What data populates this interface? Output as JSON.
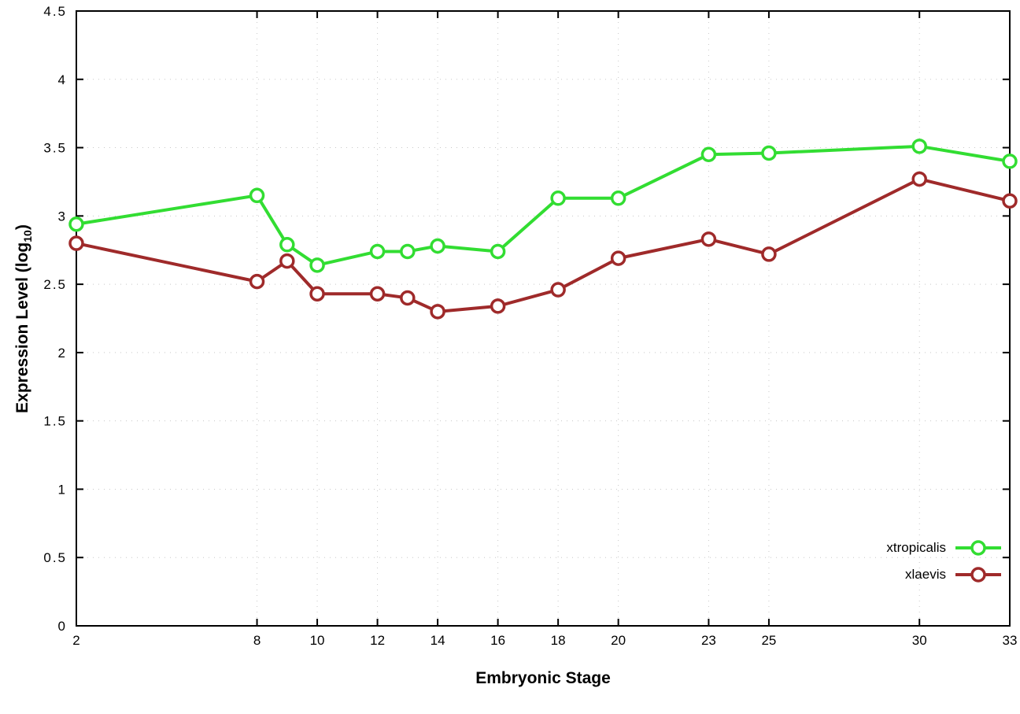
{
  "chart_data": {
    "type": "line",
    "title": "",
    "xlabel": "Embryonic Stage",
    "ylabel": "Expression Level (log10)",
    "ylabel_prefix": "Expression Level (log",
    "ylabel_sub": "10",
    "ylabel_suffix": ")",
    "xlim": [
      2,
      33
    ],
    "ylim": [
      0,
      4.5
    ],
    "x_ticks": [
      2,
      8,
      10,
      12,
      14,
      16,
      18,
      20,
      23,
      25,
      30,
      33
    ],
    "x_tick_labels": [
      "2",
      "8",
      "10",
      "12",
      "14",
      "16",
      "18",
      "20",
      "23",
      "25",
      "30",
      "33"
    ],
    "y_ticks": [
      0,
      0.5,
      1,
      1.5,
      2,
      2.5,
      3,
      3.5,
      4,
      4.5
    ],
    "y_tick_labels": [
      "0",
      "0.5",
      "1",
      "1.5",
      "2",
      "2.5",
      "3",
      "3.5",
      "4",
      "4.5"
    ],
    "grid": true,
    "legend_position": "bottom-right",
    "x": [
      2,
      8,
      9,
      10,
      12,
      13,
      14,
      16,
      18,
      20,
      23,
      25,
      30,
      33
    ],
    "series": [
      {
        "name": "xtropicalis",
        "color": "#32dd32",
        "values": [
          2.94,
          3.15,
          2.79,
          2.64,
          2.74,
          2.74,
          2.78,
          2.74,
          3.13,
          3.13,
          3.45,
          3.46,
          3.51,
          3.4
        ]
      },
      {
        "name": "xlaevis",
        "color": "#9f2a2a",
        "values": [
          2.8,
          2.52,
          2.67,
          2.43,
          2.43,
          2.4,
          2.3,
          2.34,
          2.46,
          2.69,
          2.83,
          2.72,
          3.27,
          3.11
        ]
      }
    ],
    "colors": {
      "border": "#000000",
      "grid": "#c8c8c8",
      "tick_text": "#000000"
    }
  }
}
